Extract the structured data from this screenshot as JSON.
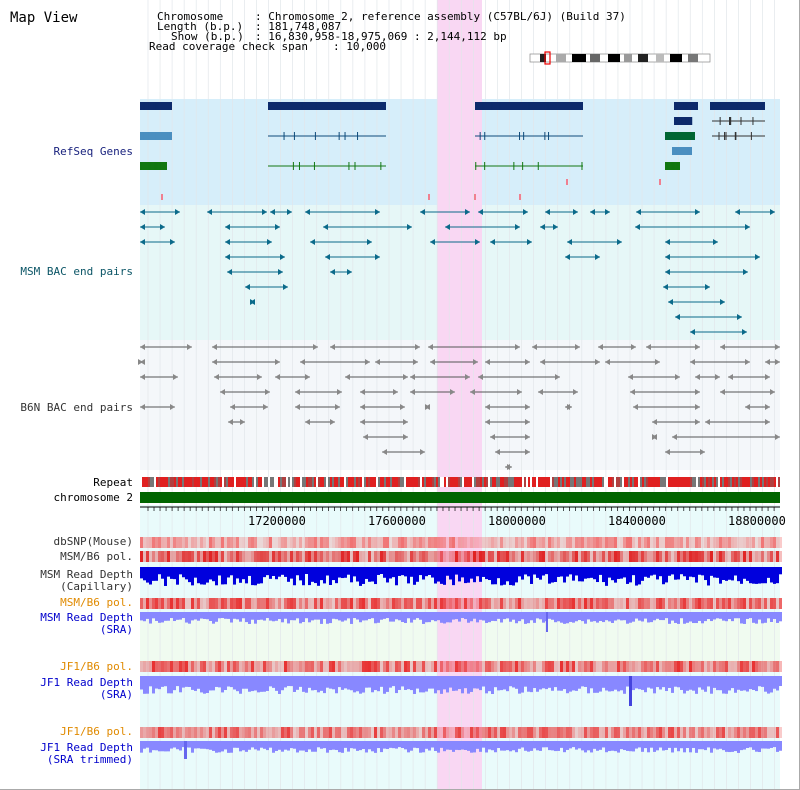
{
  "title": "Map View",
  "info": {
    "chromosome_label": "Chromosome",
    "chromosome_value": ": Chromosome 2, reference assembly (C57BL/6J) (Build 37)",
    "length_label": "Length (b.p.)",
    "length_value": ": 181,748,087",
    "show_label": "Show (b.p.)",
    "show_value": ": 16,830,958-18,975,069 : 2,144,112 bp",
    "span_label": "Read coverage check span",
    "span_value": ": 10,000"
  },
  "tracks": {
    "refseq": "RefSeq Genes",
    "msm_bac": "MSM BAC end pairs",
    "b6n_bac": "B6N BAC end pairs",
    "repeat": "Repeat",
    "chrom": "chromosome 2",
    "dbsnp": "dbSNP(Mouse)",
    "msm_pol": "MSM/B6 pol.",
    "msm_depth_cap": "MSM Read Depth\n(Capillary)",
    "msm_pol2": "MSM/B6 pol.",
    "msm_depth_sra": "MSM Read Depth\n(SRA)",
    "jf1_pol": "JF1/B6 pol.",
    "jf1_depth_sra": "JF1 Read Depth\n(SRA)",
    "jf1_pol2": "JF1/B6 pol.",
    "jf1_depth_trim": "JF1 Read Depth\n(SRA trimmed)"
  },
  "axis": {
    "ticks": [
      "17200000",
      "17600000",
      "18000000",
      "18400000",
      "18800000"
    ]
  },
  "colors": {
    "highlight": "#f9d7f3",
    "refseq_bg": "#d6eefa",
    "bac_bg": "#e6f7f7",
    "chrom": "#006400",
    "snp": "#f4a3a3",
    "depth_cap": "#0000dd",
    "depth_sra": "#8888ff"
  }
}
